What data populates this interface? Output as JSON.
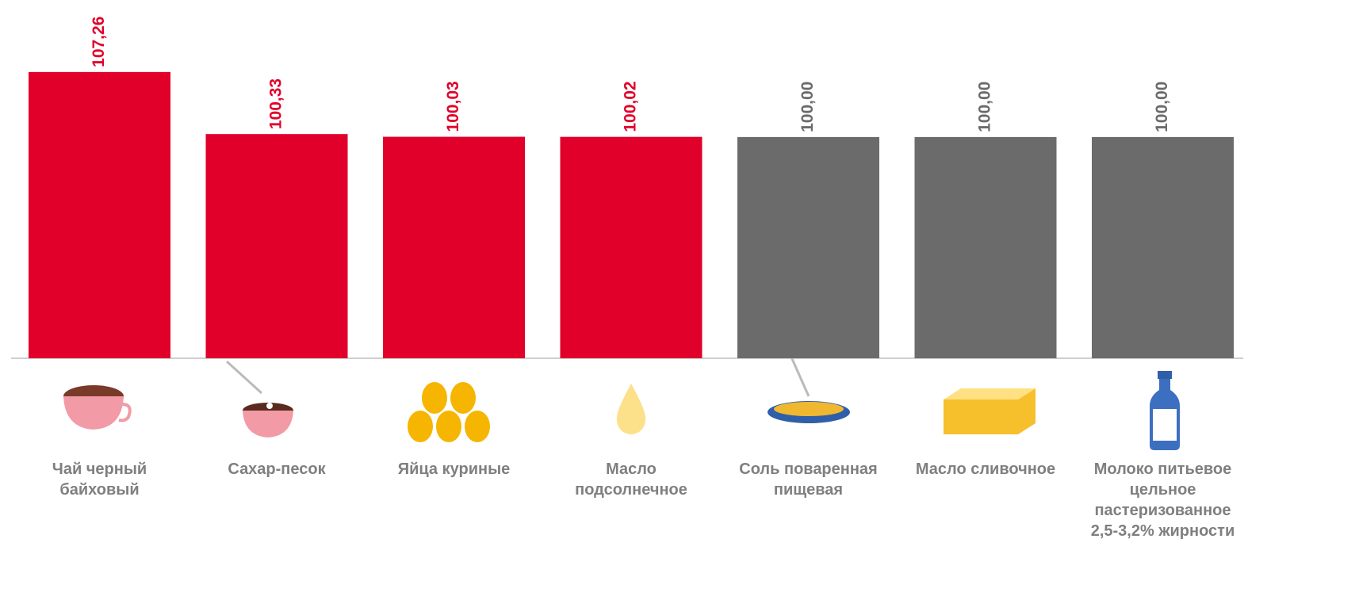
{
  "chart_data": {
    "type": "bar",
    "categories": [
      "Чай черный байховый",
      "Сахар-песок",
      "Яйца куриные",
      "Масло подсолнечное",
      "Соль поваренная пищевая",
      "Масло сливочное",
      "Молоко питьевое цельное пастеризованное 2,5-3,2% жирности"
    ],
    "values": [
      107.26,
      100.33,
      100.03,
      100.02,
      100.0,
      100.0,
      100.0
    ],
    "value_labels": [
      "107,26",
      "100,33",
      "100,03",
      "100,02",
      "100,00",
      "100,00",
      "100,00"
    ],
    "colors": [
      "#e0002a",
      "#e0002a",
      "#e0002a",
      "#e0002a",
      "#6b6b6b",
      "#6b6b6b",
      "#6b6b6b"
    ],
    "ylim": [
      75.3,
      115.3
    ]
  }
}
